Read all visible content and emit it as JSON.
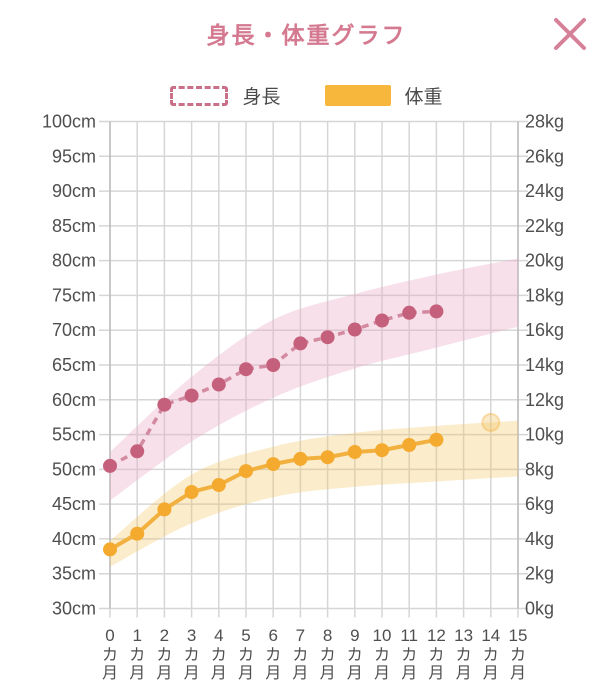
{
  "header": {
    "title": "身長・体重グラフ"
  },
  "close_button": {
    "icon": "close-x"
  },
  "legend": {
    "height_label": "身長",
    "weight_label": "体重"
  },
  "colors": {
    "title_pink": "#d4798f",
    "close_pink": "#d58298",
    "height_point": "#c5607c",
    "height_line": "#d38aa0",
    "height_band": "#e9aec7",
    "weight_point": "#f3aa2e",
    "weight_line": "#f2b13f",
    "weight_band": "#f2c462",
    "grid": "#d6d6d6",
    "axis": "#bcbcbc",
    "label_text": "#4f4f4f"
  },
  "chart_data": {
    "type": "line",
    "title": "身長・体重グラフ",
    "legend_position": "top",
    "grid": true,
    "x_axis": {
      "months": [
        0,
        1,
        2,
        3,
        4,
        5,
        6,
        7,
        8,
        9,
        10,
        11,
        12,
        13,
        14,
        15
      ],
      "suffix_chars": [
        "カ",
        "月"
      ]
    },
    "y_left": {
      "unit": "cm",
      "min": 30,
      "max": 100,
      "step": 5,
      "tick_labels": [
        "100cm",
        "95cm",
        "90cm",
        "85cm",
        "80cm",
        "75cm",
        "70cm",
        "65cm",
        "60cm",
        "55cm",
        "50cm",
        "45cm",
        "40cm",
        "35cm",
        "30cm"
      ]
    },
    "y_right": {
      "unit": "kg",
      "min": 0,
      "max": 28,
      "step": 2,
      "tick_labels": [
        "28kg",
        "26kg",
        "24kg",
        "22kg",
        "20kg",
        "18kg",
        "16kg",
        "14kg",
        "12kg",
        "10kg",
        "8kg",
        "6kg",
        "4kg",
        "2kg",
        "0kg"
      ]
    },
    "series": [
      {
        "name": "身長",
        "axis": "left",
        "style": "dashed",
        "unit": "cm",
        "months": [
          0,
          1,
          2,
          3,
          4,
          5,
          6,
          7,
          8,
          9,
          10,
          11,
          12
        ],
        "values": [
          50.5,
          52.6,
          59.3,
          60.6,
          62.2,
          64.4,
          65.0,
          68.1,
          69.0,
          70.1,
          71.4,
          72.5,
          72.7
        ]
      },
      {
        "name": "体重",
        "axis": "right",
        "style": "solid",
        "unit": "kg",
        "months": [
          0,
          1,
          2,
          3,
          4,
          5,
          6,
          7,
          8,
          9,
          10,
          11,
          12
        ],
        "values": [
          3.4,
          4.3,
          5.7,
          6.7,
          7.1,
          7.9,
          8.3,
          8.6,
          8.7,
          9.0,
          9.1,
          9.4,
          9.7
        ]
      }
    ],
    "future_point": {
      "series": "体重",
      "month": 14,
      "value": 10.7,
      "unit": "kg"
    },
    "bands": [
      {
        "name": "height-reference-band",
        "axis": "left",
        "months": [
          0,
          3,
          6,
          9,
          12,
          15
        ],
        "low": [
          45.5,
          54.0,
          60.3,
          64.5,
          67.5,
          70.5
        ],
        "high": [
          52.5,
          63.3,
          71.5,
          75.2,
          78.0,
          80.3
        ]
      },
      {
        "name": "weight-reference-band",
        "axis": "right",
        "months": [
          0,
          3,
          6,
          9,
          12,
          15
        ],
        "low": [
          2.4,
          4.9,
          6.4,
          7.0,
          7.3,
          7.6
        ],
        "high": [
          3.9,
          7.7,
          9.3,
          10.1,
          10.5,
          10.8
        ]
      }
    ]
  }
}
